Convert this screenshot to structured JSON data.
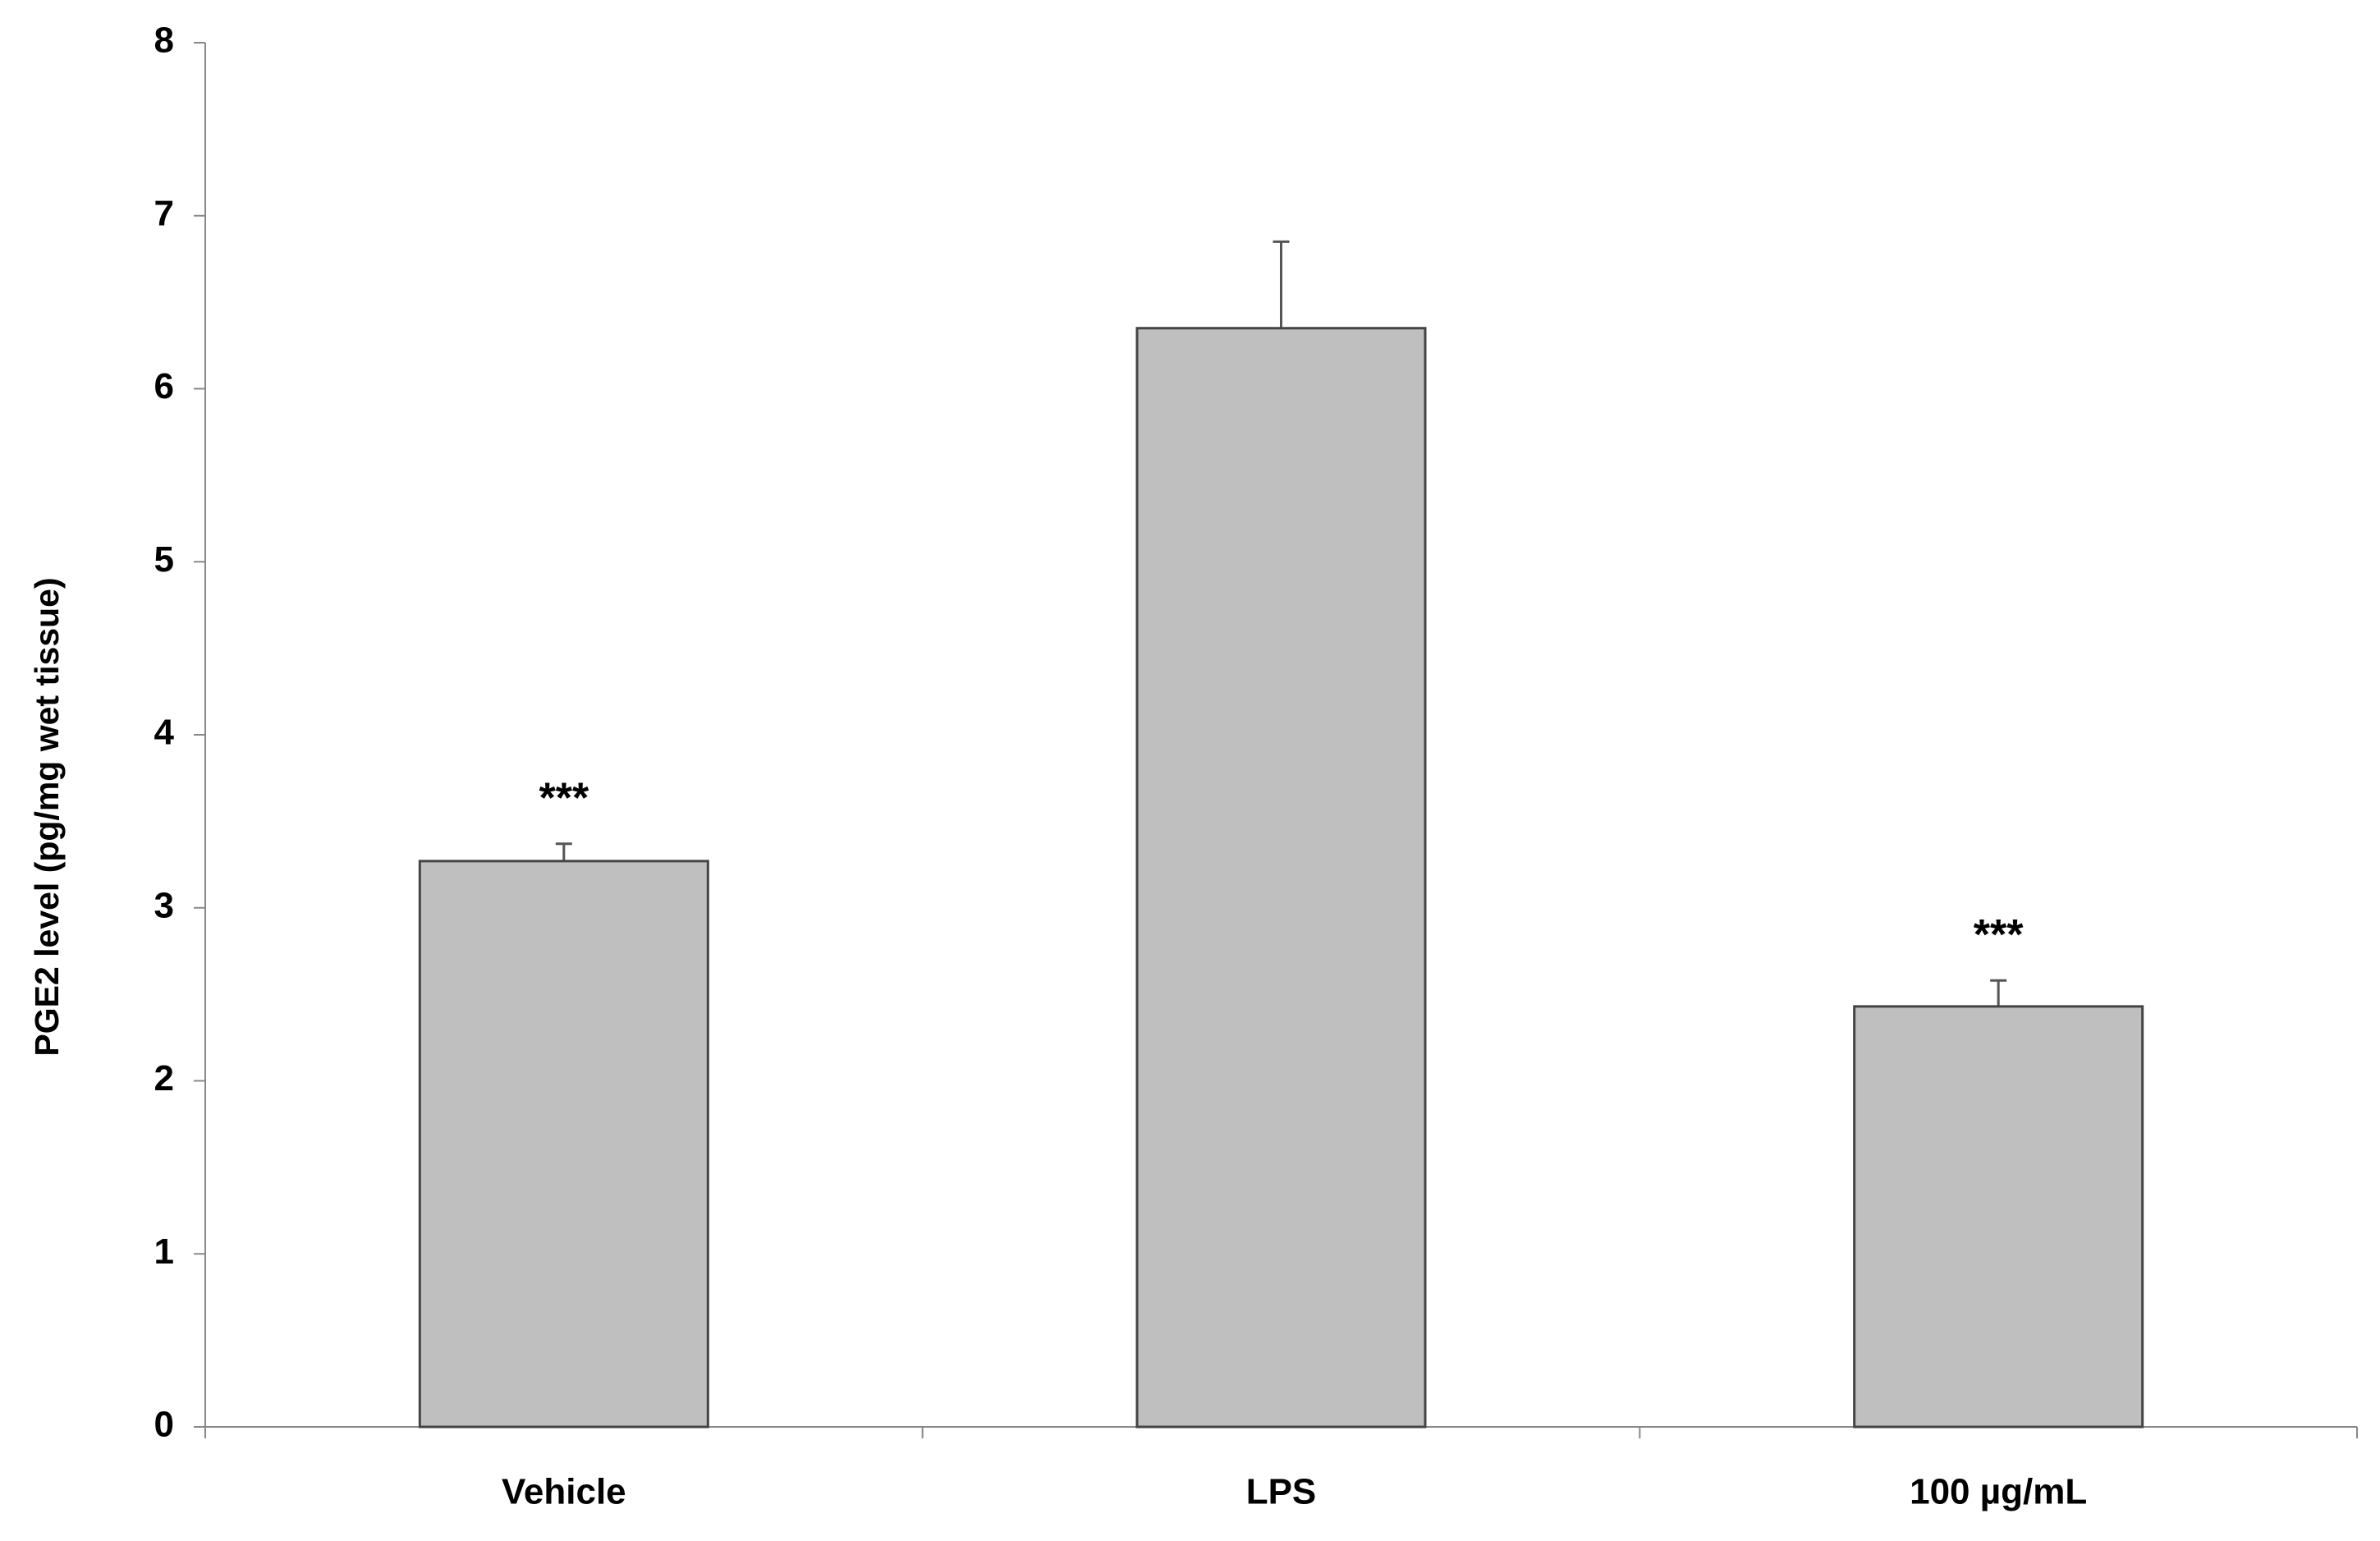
{
  "chart_data": {
    "type": "bar",
    "y_label": "PGE2 level (pg/mg wet tissue)",
    "categories": [
      "Vehicle",
      "LPS",
      "100 µg/mL"
    ],
    "values": [
      3.27,
      6.35,
      2.43
    ],
    "errors": [
      0.1,
      0.5,
      0.15
    ],
    "annotations": [
      "***",
      null,
      "***"
    ],
    "color": "#bfbfbf",
    "ylim": [
      0,
      8
    ],
    "yticks": [
      0,
      1,
      2,
      3,
      4,
      5,
      6,
      7,
      8
    ]
  }
}
